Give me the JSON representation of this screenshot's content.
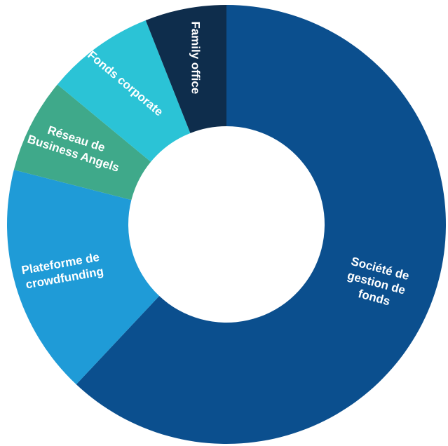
{
  "chart_data": {
    "type": "donut",
    "categories": [
      "Société de gestion de fonds",
      "Plateforme de crowdfunding",
      "Réseau de Business Angels",
      "Fonds corporate",
      "Family office"
    ],
    "values": [
      62,
      17,
      7,
      8,
      6
    ],
    "colors": [
      "#0b4f8e",
      "#1f9bd7",
      "#3fa98a",
      "#2bc3d6",
      "#0e2d4c"
    ]
  }
}
